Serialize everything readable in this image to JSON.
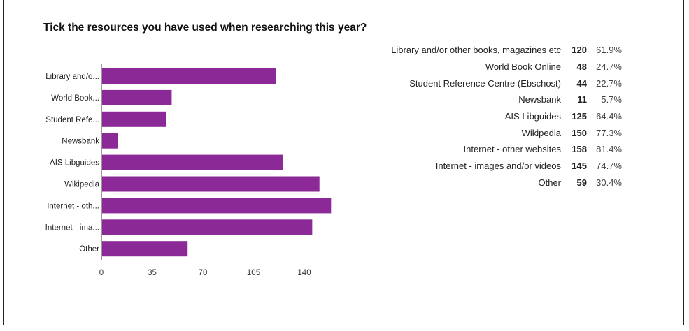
{
  "chart_data": {
    "type": "bar",
    "orientation": "horizontal",
    "title": "Tick the resources you have used when researching this year?",
    "categories": [
      "Library and/o...",
      "World Book...",
      "Student Refe...",
      "Newsbank",
      "AIS Libguides",
      "Wikipedia",
      "Internet - oth...",
      "Internet - ima...",
      "Other"
    ],
    "values": [
      120,
      48,
      44,
      11,
      125,
      150,
      158,
      145,
      59
    ],
    "xticks": [
      "0",
      "35",
      "70",
      "105",
      "140"
    ],
    "xlim": [
      0,
      160
    ],
    "bar_color": "#8b2a96",
    "grid": false,
    "legend": [
      {
        "label": "Library and/or other books, magazines etc",
        "count": "120",
        "percent": "61.9%"
      },
      {
        "label": "World Book Online",
        "count": "48",
        "percent": "24.7%"
      },
      {
        "label": "Student Reference Centre (Ebschost)",
        "count": "44",
        "percent": "22.7%"
      },
      {
        "label": "Newsbank",
        "count": "11",
        "percent": "5.7%"
      },
      {
        "label": "AIS Libguides",
        "count": "125",
        "percent": "64.4%"
      },
      {
        "label": "Wikipedia",
        "count": "150",
        "percent": "77.3%"
      },
      {
        "label": "Internet - other websites",
        "count": "158",
        "percent": "81.4%"
      },
      {
        "label": "Internet - images and/or videos",
        "count": "145",
        "percent": "74.7%"
      },
      {
        "label": "Other",
        "count": "59",
        "percent": "30.4%"
      }
    ],
    "legend_position": "right"
  }
}
